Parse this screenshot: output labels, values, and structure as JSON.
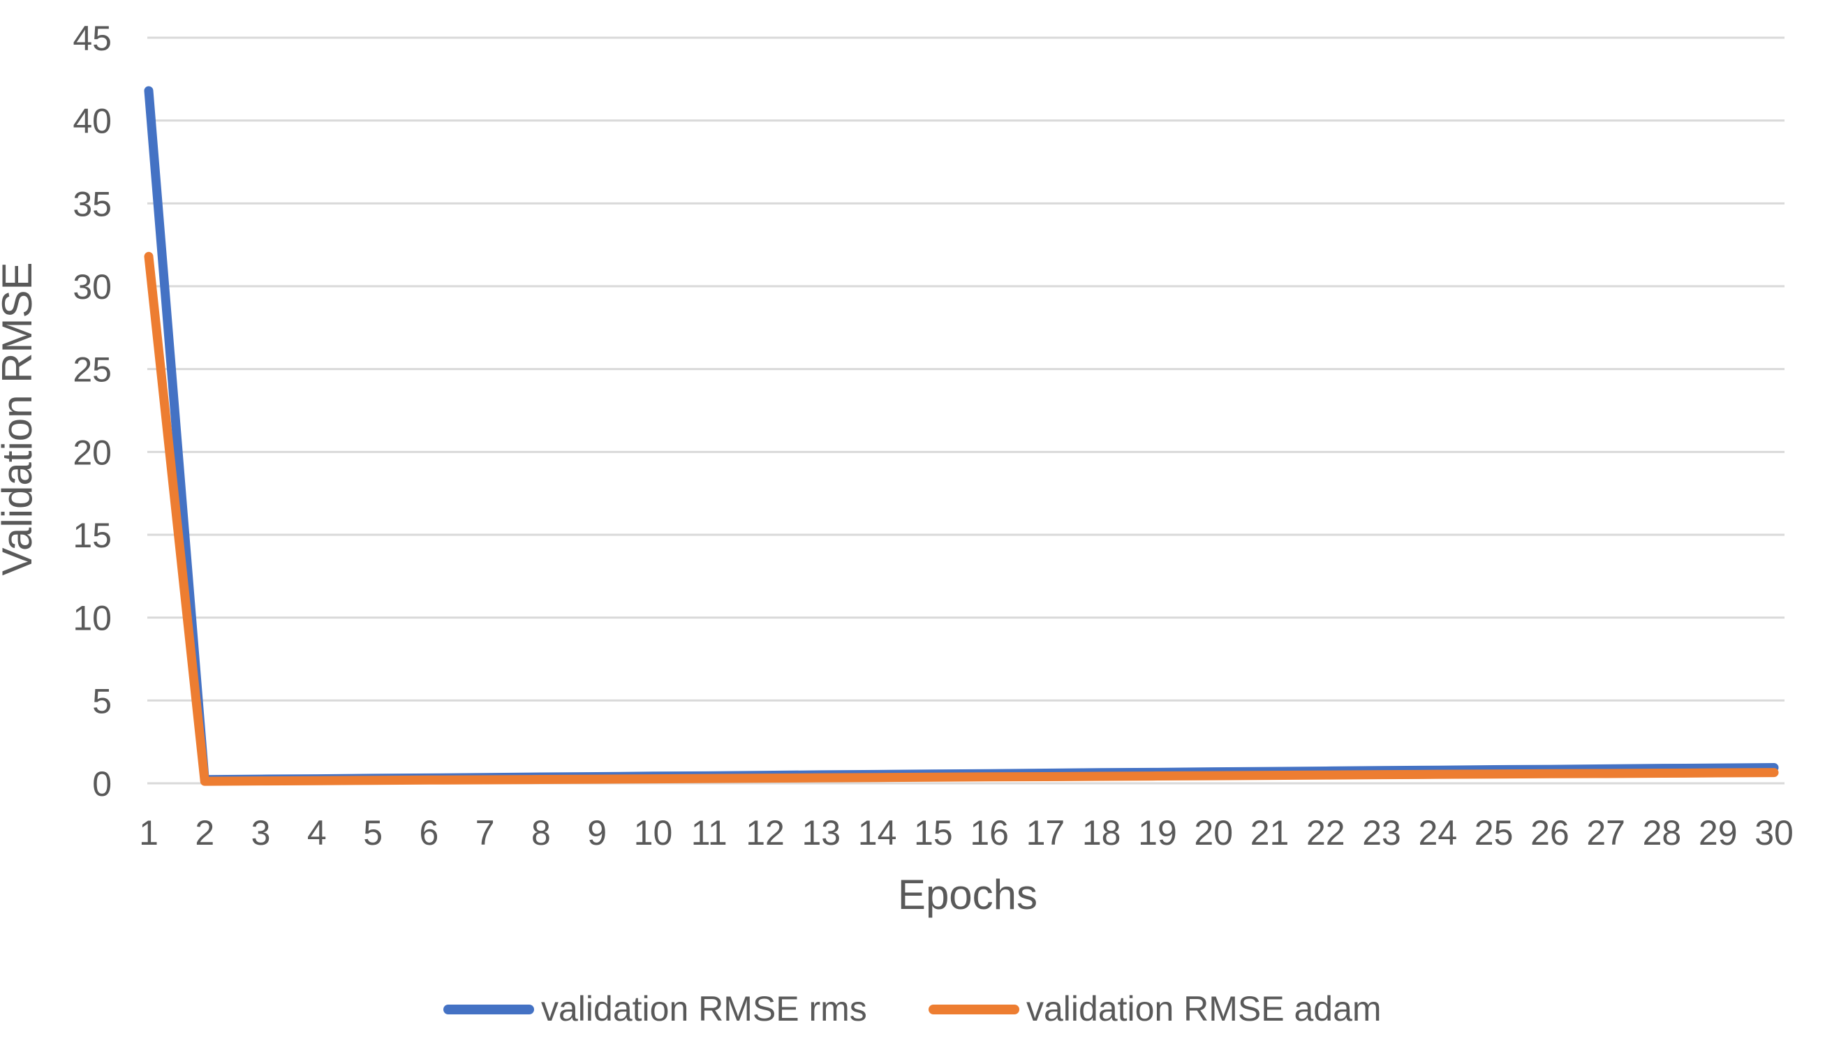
{
  "chart_data": {
    "type": "line",
    "title": "",
    "xlabel": "Epochs",
    "ylabel": "Validation RMSE",
    "categories": [
      "1",
      "2",
      "3",
      "4",
      "5",
      "6",
      "7",
      "8",
      "9",
      "10",
      "11",
      "12",
      "13",
      "14",
      "15",
      "16",
      "17",
      "18",
      "19",
      "20",
      "21",
      "22",
      "23",
      "24",
      "25",
      "26",
      "27",
      "28",
      "29",
      "30"
    ],
    "series": [
      {
        "name": "validation RMSE rms",
        "color": "#4472C4",
        "values": [
          41.8,
          0.22,
          0.25,
          0.27,
          0.3,
          0.32,
          0.35,
          0.38,
          0.4,
          0.43,
          0.45,
          0.48,
          0.51,
          0.53,
          0.56,
          0.58,
          0.61,
          0.64,
          0.66,
          0.69,
          0.71,
          0.74,
          0.77,
          0.79,
          0.82,
          0.84,
          0.87,
          0.9,
          0.92,
          0.95
        ]
      },
      {
        "name": "validation RMSE adam",
        "color": "#ED7D31",
        "values": [
          31.8,
          0.12,
          0.14,
          0.16,
          0.18,
          0.2,
          0.21,
          0.23,
          0.25,
          0.27,
          0.29,
          0.31,
          0.33,
          0.35,
          0.37,
          0.39,
          0.4,
          0.42,
          0.44,
          0.46,
          0.48,
          0.5,
          0.52,
          0.54,
          0.56,
          0.58,
          0.59,
          0.61,
          0.63,
          0.65
        ]
      }
    ],
    "ylim": [
      0,
      45
    ],
    "ytick_step": 5,
    "yticks": [
      0,
      5,
      10,
      15,
      20,
      25,
      30,
      35,
      40,
      45
    ],
    "grid": "horizontal",
    "gridline_color": "#D9D9D9",
    "text_color": "#595959",
    "legend_position": "bottom"
  }
}
